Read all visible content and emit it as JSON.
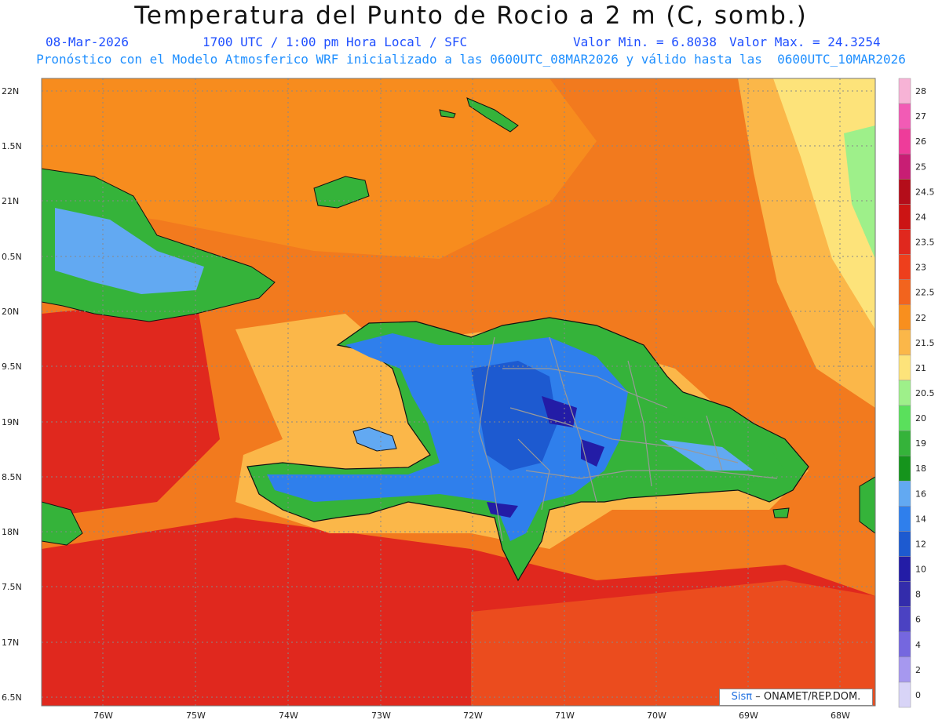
{
  "title": "Temperatura del Punto de Rocio a 2 m (C, somb.)",
  "date": "08-Mar-2026",
  "time": "1700 UTC / 1:00 pm Hora Local / SFC",
  "min_label": "Valor Min. = 6.8038",
  "max_label": "Valor Max. = 24.3254",
  "model_line": "Pronóstico con el Modelo Atmosferico WRF inicializado a las 0600UTC_08MAR2026 y válido hasta las  0600UTC_10MAR2026",
  "lat_labels": [
    "22N",
    "1.5N",
    "21N",
    "0.5N",
    "20N",
    "9.5N",
    "19N",
    "8.5N",
    "18N",
    "7.5N",
    "17N",
    "6.5N"
  ],
  "lon_labels": [
    "76W",
    "75W",
    "74W",
    "73W",
    "72W",
    "71W",
    "70W",
    "69W",
    "68W"
  ],
  "legend": {
    "levels": [
      "28",
      "27",
      "26",
      "25",
      "24.5",
      "24",
      "23.5",
      "23",
      "22.5",
      "22",
      "21.5",
      "21",
      "20.5",
      "20",
      "19",
      "18",
      "16",
      "14",
      "12",
      "10",
      "8",
      "6",
      "4",
      "2",
      "0"
    ],
    "colors": [
      "#f7b3d6",
      "#f25bb5",
      "#ee3c9a",
      "#c81e74",
      "#b40d1a",
      "#cc1414",
      "#e0281e",
      "#ee3f1c",
      "#f2641e",
      "#f88f1e",
      "#fbb749",
      "#fde37a",
      "#9ef08a",
      "#5ae05c",
      "#35b33a",
      "#15941c",
      "#62a9f2",
      "#2f7fec",
      "#1d5ad0",
      "#231ca6",
      "#332cab",
      "#4b42c2",
      "#7567df",
      "#a698ef",
      "#d8d4f7"
    ]
  },
  "credit_sis": "Sisπ",
  "credit_rest": "– ONAMET/REP.DOM."
}
